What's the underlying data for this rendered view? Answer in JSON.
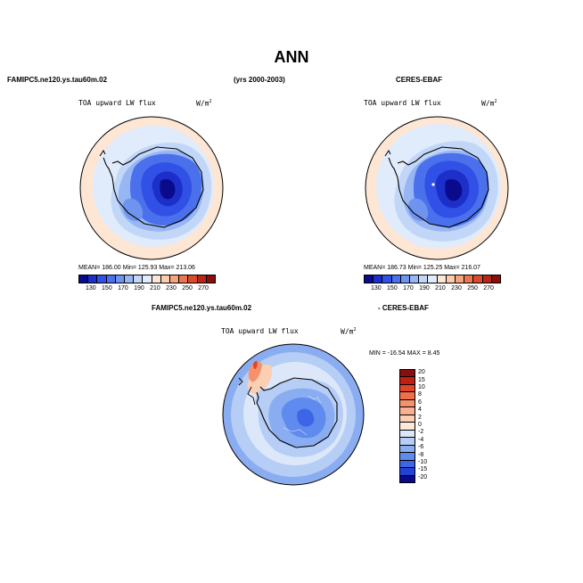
{
  "title": "ANN",
  "header": {
    "left_case": "FAMIPC5.ne120.ys.tau60m.02",
    "period": "(yrs 2000-2003)",
    "right_case": "CERES-EBAF"
  },
  "panels": [
    {
      "variable": "TOA upward LW flux",
      "units_base": "W/m",
      "units_exp": "2",
      "stats": "MEAN= 186.00   Min= 125.93   Max= 213.06"
    },
    {
      "variable": "TOA upward LW flux",
      "units_base": "W/m",
      "units_exp": "2",
      "stats": "MEAN= 186.73   Min= 125.25   Max= 216.07"
    }
  ],
  "diff_panel": {
    "label_left": "FAMIPC5.ne120.ys.tau60m.02",
    "label_right": "- CERES-EBAF",
    "variable": "TOA upward LW flux",
    "units_base": "W/m",
    "units_exp": "2",
    "stats": "MIN = -16.54  MAX =   8.45"
  },
  "colorbar_abs": {
    "colors": [
      "#0a0a8c",
      "#1c2fc8",
      "#3050e6",
      "#4a70ec",
      "#6f94ef",
      "#97b6f3",
      "#c2d7f8",
      "#e0ebfb",
      "#fde6d4",
      "#fbcbad",
      "#f6a37f",
      "#ec7650",
      "#d94a2e",
      "#b82617",
      "#8a0e0c"
    ],
    "tick_labels": [
      "130",
      "150",
      "170",
      "190",
      "210",
      "230",
      "250",
      "270"
    ]
  },
  "colorbar_diff": {
    "colors_top_to_bottom": [
      "#8a0e0c",
      "#c21f13",
      "#e4442a",
      "#ef6f4b",
      "#f5926c",
      "#f8b090",
      "#fbcfb4",
      "#fde8d9",
      "#dce8fa",
      "#b6cdf5",
      "#8aadf1",
      "#5f8aee",
      "#3c65e8",
      "#2342d6",
      "#0a0a8c"
    ],
    "tick_labels": [
      "20",
      "15",
      "10",
      "8",
      "6",
      "4",
      "2",
      "0",
      "-2",
      "-4",
      "-6",
      "-8",
      "-10",
      "-15",
      "-20"
    ]
  }
}
